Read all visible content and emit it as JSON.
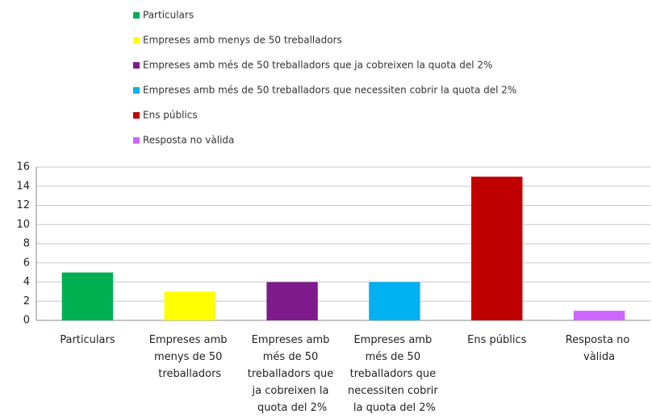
{
  "chart_data": {
    "type": "bar",
    "categories": [
      "Particulars",
      "Empreses amb menys de 50 treballadors",
      "Empreses amb més de 50 treballadors que ja cobreixen la quota del 2%",
      "Empreses amb més de 50 treballadors que necessiten cobrir la quota del 2%",
      "Ens públics",
      "Resposta no vàlida"
    ],
    "values": [
      5,
      3,
      4,
      4,
      15,
      1
    ],
    "colors": [
      "#00b050",
      "#ffff00",
      "#7f1a8c",
      "#00b0f0",
      "#c00000",
      "#cc66ff"
    ],
    "ylim": [
      0,
      16
    ],
    "yticks": [
      0,
      2,
      4,
      6,
      8,
      10,
      12,
      14,
      16
    ],
    "grid": true,
    "legend": "top"
  }
}
